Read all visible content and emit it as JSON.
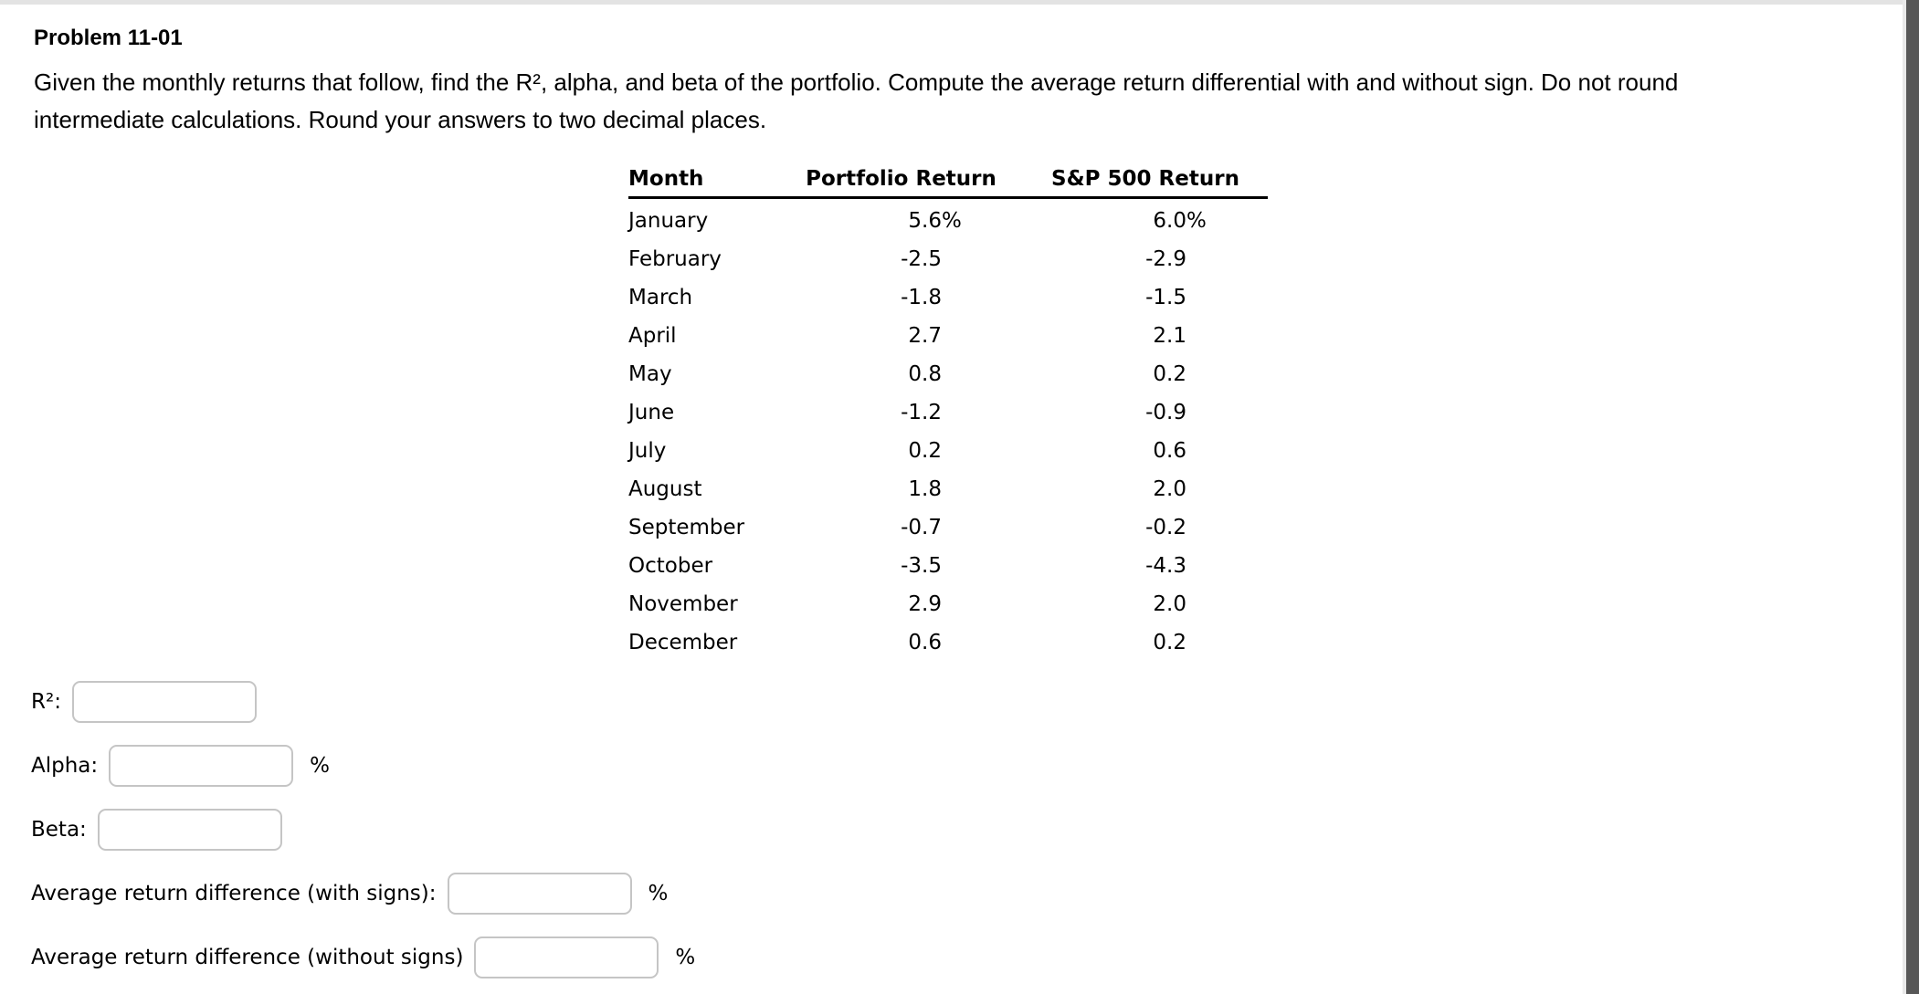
{
  "page": {
    "title": "Problem 11-01",
    "instructions": [
      "Given the monthly returns that follow, find the R², alpha, and beta of the portfolio. Compute the average return differential with and without sign. Do not round",
      "intermediate calculations. Round your answers to two decimal places."
    ]
  },
  "table": {
    "headers": [
      "Month",
      "Portfolio Return",
      "S&P 500 Return"
    ],
    "rows": [
      {
        "month": "January",
        "portfolio": "5.6",
        "portfolio_suffix": "%",
        "sp500": "6.0",
        "sp500_suffix": "%"
      },
      {
        "month": "February",
        "portfolio": "-2.5",
        "portfolio_suffix": "",
        "sp500": "-2.9",
        "sp500_suffix": ""
      },
      {
        "month": "March",
        "portfolio": "-1.8",
        "portfolio_suffix": "",
        "sp500": "-1.5",
        "sp500_suffix": ""
      },
      {
        "month": "April",
        "portfolio": "2.7",
        "portfolio_suffix": "",
        "sp500": "2.1",
        "sp500_suffix": ""
      },
      {
        "month": "May",
        "portfolio": "0.8",
        "portfolio_suffix": "",
        "sp500": "0.2",
        "sp500_suffix": ""
      },
      {
        "month": "June",
        "portfolio": "-1.2",
        "portfolio_suffix": "",
        "sp500": "-0.9",
        "sp500_suffix": ""
      },
      {
        "month": "July",
        "portfolio": "0.2",
        "portfolio_suffix": "",
        "sp500": "0.6",
        "sp500_suffix": ""
      },
      {
        "month": "August",
        "portfolio": "1.8",
        "portfolio_suffix": "",
        "sp500": "2.0",
        "sp500_suffix": ""
      },
      {
        "month": "September",
        "portfolio": "-0.7",
        "portfolio_suffix": "",
        "sp500": "-0.2",
        "sp500_suffix": ""
      },
      {
        "month": "October",
        "portfolio": "-3.5",
        "portfolio_suffix": "",
        "sp500": "-4.3",
        "sp500_suffix": ""
      },
      {
        "month": "November",
        "portfolio": "2.9",
        "portfolio_suffix": "",
        "sp500": "2.0",
        "sp500_suffix": ""
      },
      {
        "month": "December",
        "portfolio": "0.6",
        "portfolio_suffix": "",
        "sp500": "0.2",
        "sp500_suffix": ""
      }
    ]
  },
  "answers": [
    {
      "label": "R²:",
      "value": "",
      "suffix": ""
    },
    {
      "label": "Alpha:",
      "value": "",
      "suffix": "%"
    },
    {
      "label": "Beta:",
      "value": "",
      "suffix": ""
    },
    {
      "label": "Average return difference (with signs):",
      "value": "",
      "suffix": "%"
    },
    {
      "label": "Average return difference (without signs)",
      "value": "",
      "suffix": "%"
    }
  ],
  "colors": {
    "scrollbar_thumb": "#575757",
    "scrollbar_track": "#e8e8e8",
    "top_strip": "#e3e3e3",
    "input_border": "#c5c5c5",
    "table_rule": "#000000"
  }
}
